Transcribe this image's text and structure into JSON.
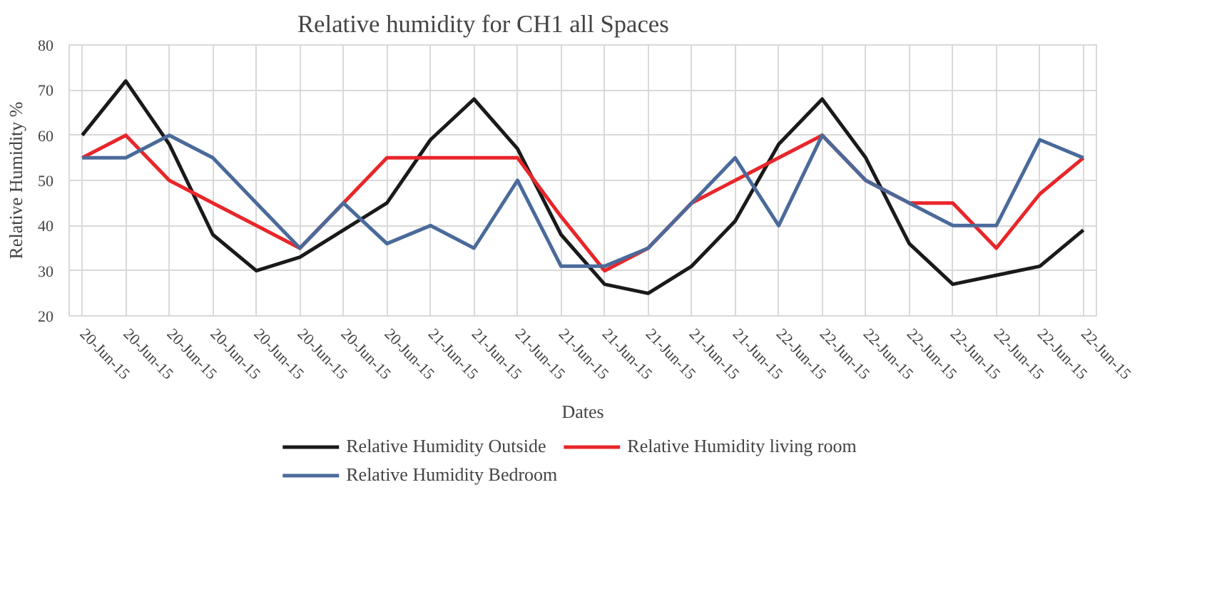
{
  "chart_data": {
    "type": "line",
    "title": "Relative humidity for CH1 all Spaces",
    "xlabel": "Dates",
    "ylabel": "Relative Humidity %",
    "categories": [
      "20-Jun-15",
      "20-Jun-15",
      "20-Jun-15",
      "20-Jun-15",
      "20-Jun-15",
      "20-Jun-15",
      "20-Jun-15",
      "20-Jun-15",
      "21-Jun-15",
      "21-Jun-15",
      "21-Jun-15",
      "21-Jun-15",
      "21-Jun-15",
      "21-Jun-15",
      "21-Jun-15",
      "21-Jun-15",
      "22-Jun-15",
      "22-Jun-15",
      "22-Jun-15",
      "22-Jun-15",
      "22-Jun-15",
      "22-Jun-15",
      "22-Jun-15",
      "22-Jun-15"
    ],
    "series": [
      {
        "name": "Relative Humidity Outside",
        "color": "#1a1a1a",
        "values": [
          60,
          72,
          58,
          38,
          30,
          33,
          39,
          45,
          59,
          68,
          57,
          38,
          27,
          25,
          31,
          41,
          58,
          68,
          55,
          36,
          27,
          29,
          31,
          39
        ]
      },
      {
        "name": "Relative Humidity living room",
        "color": "#e8262a",
        "values": [
          55,
          60,
          50,
          45,
          40,
          35,
          45,
          55,
          55,
          55,
          55,
          42,
          30,
          35,
          45,
          50,
          55,
          60,
          50,
          45,
          45,
          35,
          47,
          55
        ]
      },
      {
        "name": "Relative Humidity Bedroom",
        "color": "#4a6a9a",
        "values": [
          55,
          55,
          60,
          55,
          45,
          35,
          45,
          36,
          40,
          35,
          50,
          31,
          31,
          35,
          45,
          55,
          40,
          60,
          50,
          45,
          40,
          40,
          59,
          55
        ]
      }
    ],
    "ylim": [
      20,
      80
    ],
    "yticks": [
      20,
      30,
      40,
      50,
      60,
      70,
      80
    ],
    "grid": true,
    "legend": "bottom",
    "marker": "none",
    "line_style": "solid"
  }
}
